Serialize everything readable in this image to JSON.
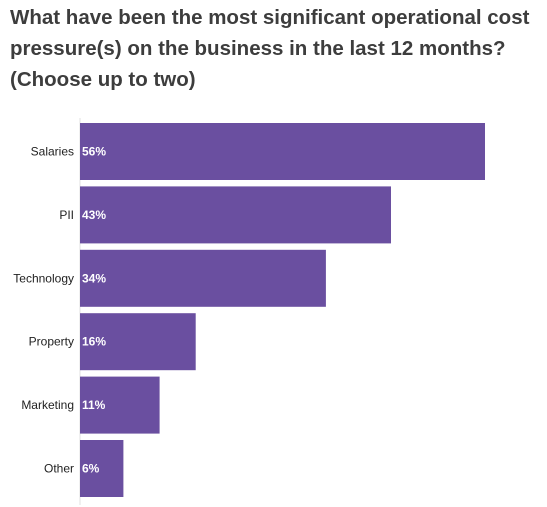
{
  "chart_data": {
    "type": "bar",
    "orientation": "horizontal",
    "title": "What have been the most significant operational cost pressure(s) on the business in the last 12 months? (Choose up to two)",
    "categories": [
      "Salaries",
      "PII",
      "Technology",
      "Property",
      "Marketing",
      "Other"
    ],
    "values": [
      56,
      43,
      34,
      16,
      11,
      6
    ],
    "value_labels": [
      "56%",
      "43%",
      "34%",
      "16%",
      "11%",
      "6%"
    ],
    "unit": "%",
    "xlim": [
      0,
      56
    ],
    "grid": false,
    "legend": "none",
    "bar_color": "#6a4fa0"
  }
}
